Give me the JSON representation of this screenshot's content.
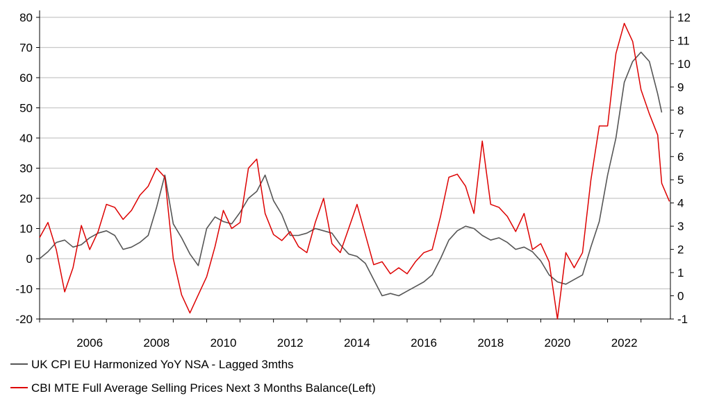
{
  "chart_data": {
    "type": "line",
    "title": "",
    "xlabel": "",
    "ylabel_left": "",
    "ylabel_right": "",
    "x_ticks": [
      "2006",
      "2008",
      "2010",
      "2012",
      "2014",
      "2016",
      "2018",
      "2020",
      "2022"
    ],
    "x_range": [
      "2005-01",
      "2023-09"
    ],
    "y_left": {
      "min": -20,
      "max": 80,
      "step": 10,
      "ticks": [
        "-20",
        "-10",
        "0",
        "10",
        "20",
        "30",
        "40",
        "50",
        "60",
        "70",
        "80"
      ]
    },
    "y_right": {
      "min": -1,
      "max": 12,
      "step": 1,
      "ticks": [
        "-1",
        "0",
        "1",
        "2",
        "3",
        "4",
        "5",
        "6",
        "7",
        "8",
        "9",
        "10",
        "11",
        "12"
      ]
    },
    "grid": "horizontal",
    "legend_position": "bottom-left",
    "series": [
      {
        "name": "UK CPI EU Harmonized YoY NSA - Lagged 3mths",
        "axis": "right",
        "color": "#555555",
        "points": [
          [
            2005.0,
            1.6
          ],
          [
            2005.25,
            1.9
          ],
          [
            2005.5,
            2.3
          ],
          [
            2005.75,
            2.4
          ],
          [
            2006.0,
            2.1
          ],
          [
            2006.25,
            2.2
          ],
          [
            2006.5,
            2.5
          ],
          [
            2006.75,
            2.7
          ],
          [
            2007.0,
            2.8
          ],
          [
            2007.25,
            2.6
          ],
          [
            2007.5,
            2.0
          ],
          [
            2007.75,
            2.1
          ],
          [
            2008.0,
            2.3
          ],
          [
            2008.25,
            2.6
          ],
          [
            2008.5,
            3.8
          ],
          [
            2008.75,
            5.2
          ],
          [
            2009.0,
            3.1
          ],
          [
            2009.25,
            2.5
          ],
          [
            2009.5,
            1.8
          ],
          [
            2009.75,
            1.3
          ],
          [
            2010.0,
            2.9
          ],
          [
            2010.25,
            3.4
          ],
          [
            2010.5,
            3.2
          ],
          [
            2010.75,
            3.1
          ],
          [
            2011.0,
            3.6
          ],
          [
            2011.25,
            4.2
          ],
          [
            2011.5,
            4.5
          ],
          [
            2011.75,
            5.2
          ],
          [
            2012.0,
            4.1
          ],
          [
            2012.25,
            3.5
          ],
          [
            2012.5,
            2.6
          ],
          [
            2012.75,
            2.6
          ],
          [
            2013.0,
            2.7
          ],
          [
            2013.25,
            2.9
          ],
          [
            2013.5,
            2.8
          ],
          [
            2013.75,
            2.7
          ],
          [
            2014.0,
            2.2
          ],
          [
            2014.25,
            1.8
          ],
          [
            2014.5,
            1.7
          ],
          [
            2014.75,
            1.4
          ],
          [
            2015.0,
            0.7
          ],
          [
            2015.25,
            0.0
          ],
          [
            2015.5,
            0.1
          ],
          [
            2015.75,
            0.0
          ],
          [
            2016.0,
            0.2
          ],
          [
            2016.25,
            0.4
          ],
          [
            2016.5,
            0.6
          ],
          [
            2016.75,
            0.9
          ],
          [
            2017.0,
            1.6
          ],
          [
            2017.25,
            2.4
          ],
          [
            2017.5,
            2.8
          ],
          [
            2017.75,
            3.0
          ],
          [
            2018.0,
            2.9
          ],
          [
            2018.25,
            2.6
          ],
          [
            2018.5,
            2.4
          ],
          [
            2018.75,
            2.5
          ],
          [
            2019.0,
            2.3
          ],
          [
            2019.25,
            2.0
          ],
          [
            2019.5,
            2.1
          ],
          [
            2019.75,
            1.9
          ],
          [
            2020.0,
            1.5
          ],
          [
            2020.25,
            0.9
          ],
          [
            2020.5,
            0.6
          ],
          [
            2020.75,
            0.5
          ],
          [
            2021.0,
            0.7
          ],
          [
            2021.25,
            0.9
          ],
          [
            2021.5,
            2.1
          ],
          [
            2021.75,
            3.2
          ],
          [
            2022.0,
            5.2
          ],
          [
            2022.25,
            6.8
          ],
          [
            2022.5,
            9.2
          ],
          [
            2022.75,
            10.1
          ],
          [
            2023.0,
            10.5
          ],
          [
            2023.25,
            10.1
          ],
          [
            2023.5,
            8.7
          ],
          [
            2023.62,
            7.9
          ]
        ]
      },
      {
        "name": "CBI MTE Full Average Selling Prices Next 3 Months Balance(Left)",
        "axis": "left",
        "color": "#dd0000",
        "points": [
          [
            2005.0,
            7
          ],
          [
            2005.25,
            12
          ],
          [
            2005.5,
            3
          ],
          [
            2005.75,
            -11
          ],
          [
            2006.0,
            -3
          ],
          [
            2006.25,
            11
          ],
          [
            2006.5,
            3
          ],
          [
            2006.75,
            9
          ],
          [
            2007.0,
            18
          ],
          [
            2007.25,
            17
          ],
          [
            2007.5,
            13
          ],
          [
            2007.75,
            16
          ],
          [
            2008.0,
            21
          ],
          [
            2008.25,
            24
          ],
          [
            2008.5,
            30
          ],
          [
            2008.75,
            27
          ],
          [
            2009.0,
            0
          ],
          [
            2009.25,
            -12
          ],
          [
            2009.5,
            -18
          ],
          [
            2009.75,
            -12
          ],
          [
            2010.0,
            -6
          ],
          [
            2010.25,
            4
          ],
          [
            2010.5,
            16
          ],
          [
            2010.75,
            10
          ],
          [
            2011.0,
            12
          ],
          [
            2011.25,
            30
          ],
          [
            2011.5,
            33
          ],
          [
            2011.75,
            15
          ],
          [
            2012.0,
            8
          ],
          [
            2012.25,
            6
          ],
          [
            2012.5,
            9
          ],
          [
            2012.75,
            4
          ],
          [
            2013.0,
            2
          ],
          [
            2013.25,
            12
          ],
          [
            2013.5,
            20
          ],
          [
            2013.75,
            5
          ],
          [
            2014.0,
            2
          ],
          [
            2014.25,
            10
          ],
          [
            2014.5,
            18
          ],
          [
            2014.75,
            8
          ],
          [
            2015.0,
            -2
          ],
          [
            2015.25,
            -1
          ],
          [
            2015.5,
            -5
          ],
          [
            2015.75,
            -3
          ],
          [
            2016.0,
            -5
          ],
          [
            2016.25,
            -1
          ],
          [
            2016.5,
            2
          ],
          [
            2016.75,
            3
          ],
          [
            2017.0,
            14
          ],
          [
            2017.25,
            27
          ],
          [
            2017.5,
            28
          ],
          [
            2017.75,
            24
          ],
          [
            2018.0,
            15
          ],
          [
            2018.25,
            39
          ],
          [
            2018.5,
            18
          ],
          [
            2018.75,
            17
          ],
          [
            2019.0,
            14
          ],
          [
            2019.25,
            9
          ],
          [
            2019.5,
            15
          ],
          [
            2019.75,
            3
          ],
          [
            2020.0,
            5
          ],
          [
            2020.25,
            -1
          ],
          [
            2020.5,
            -20
          ],
          [
            2020.75,
            2
          ],
          [
            2021.0,
            -3
          ],
          [
            2021.25,
            2
          ],
          [
            2021.5,
            26
          ],
          [
            2021.75,
            44
          ],
          [
            2022.0,
            44
          ],
          [
            2022.25,
            68
          ],
          [
            2022.5,
            78
          ],
          [
            2022.75,
            72
          ],
          [
            2023.0,
            56
          ],
          [
            2023.25,
            48
          ],
          [
            2023.5,
            41
          ],
          [
            2023.62,
            25
          ],
          [
            2023.85,
            19
          ]
        ]
      }
    ]
  }
}
